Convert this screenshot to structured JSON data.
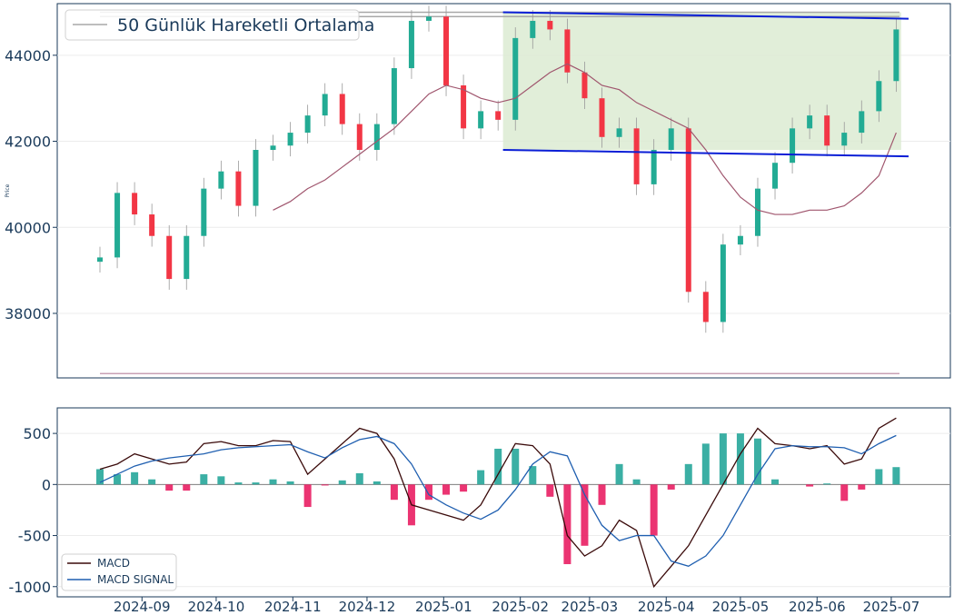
{
  "chart_data": [
    {
      "type": "candlestick",
      "ylabel": "Price",
      "ylim": [
        36500,
        45200
      ],
      "yticks": [
        38000,
        40000,
        42000,
        44000
      ],
      "legend": {
        "position": "top-left",
        "entries": [
          "50 Günlük Hareketli Ortalama"
        ]
      },
      "grid": true,
      "x_dates": [
        "2024-08-15",
        "2024-08-22",
        "2024-08-29",
        "2024-09-05",
        "2024-09-12",
        "2024-09-19",
        "2024-09-26",
        "2024-10-03",
        "2024-10-10",
        "2024-10-17",
        "2024-10-24",
        "2024-10-31",
        "2024-11-07",
        "2024-11-14",
        "2024-11-21",
        "2024-11-28",
        "2024-12-05",
        "2024-12-12",
        "2024-12-19",
        "2024-12-26",
        "2025-01-02",
        "2025-01-09",
        "2025-01-16",
        "2025-01-23",
        "2025-01-30",
        "2025-02-06",
        "2025-02-13",
        "2025-02-20",
        "2025-02-27",
        "2025-03-06",
        "2025-03-13",
        "2025-03-20",
        "2025-03-27",
        "2025-04-03",
        "2025-04-10",
        "2025-04-17",
        "2025-04-24",
        "2025-05-01",
        "2025-05-08",
        "2025-05-15",
        "2025-05-22",
        "2025-05-29",
        "2025-06-05",
        "2025-06-12",
        "2025-06-19",
        "2025-06-26",
        "2025-07-03"
      ],
      "close": [
        39300,
        40800,
        40300,
        39800,
        38800,
        39800,
        40900,
        41300,
        40500,
        41800,
        41900,
        42200,
        42600,
        43100,
        42400,
        41800,
        42400,
        43700,
        44800,
        44900,
        43300,
        42300,
        42700,
        42500,
        44400,
        44800,
        44600,
        43600,
        43000,
        42100,
        42300,
        41000,
        41800,
        42300,
        38500,
        37800,
        39600,
        39800,
        40900,
        41500,
        42300,
        42600,
        41900,
        42200,
        42700,
        43400,
        44600
      ],
      "ma50": [
        null,
        null,
        null,
        null,
        null,
        null,
        null,
        null,
        null,
        null,
        40400,
        40600,
        40900,
        41100,
        41400,
        41700,
        42000,
        42300,
        42700,
        43100,
        43300,
        43200,
        43000,
        42900,
        43000,
        43300,
        43600,
        43800,
        43600,
        43300,
        43200,
        42900,
        42700,
        42500,
        42300,
        41800,
        41200,
        40700,
        40400,
        40300,
        40300,
        40400,
        40400,
        40500,
        40800,
        41200,
        42200
      ],
      "channel": {
        "upper": [
          45000,
          44850
        ],
        "lower": [
          41800,
          41650
        ],
        "dates": [
          "2025-01-25",
          "2025-07-08"
        ]
      },
      "hlines": [
        45000,
        44900,
        36600
      ],
      "shaded_box": {
        "x": [
          "2025-01-25",
          "2025-07-05"
        ],
        "y": [
          41800,
          45000
        ]
      }
    },
    {
      "type": "line+bar",
      "ylim": [
        -1100,
        750
      ],
      "yticks": [
        -1000,
        -500,
        0,
        500
      ],
      "xticks": [
        "2024-09",
        "2024-10",
        "2024-11",
        "2024-12",
        "2025-01",
        "2025-02",
        "2025-03",
        "2025-04",
        "2025-05",
        "2025-06",
        "2025-07"
      ],
      "series": [
        {
          "name": "MACD",
          "values": [
            150,
            200,
            300,
            250,
            200,
            220,
            400,
            420,
            380,
            380,
            430,
            420,
            100,
            250,
            400,
            550,
            500,
            250,
            -200,
            -250,
            -300,
            -350,
            -200,
            100,
            400,
            380,
            200,
            -500,
            -700,
            -600,
            -350,
            -450,
            -1000,
            -800,
            -600,
            -300,
            0,
            300,
            550,
            400,
            380,
            350,
            380,
            200,
            250,
            550,
            650
          ]
        },
        {
          "name": "MACD SIGNAL",
          "values": [
            20,
            100,
            180,
            230,
            260,
            280,
            300,
            340,
            360,
            370,
            380,
            390,
            320,
            260,
            360,
            440,
            470,
            400,
            200,
            -100,
            -200,
            -280,
            -340,
            -250,
            -50,
            200,
            320,
            280,
            -100,
            -400,
            -550,
            -500,
            -500,
            -750,
            -800,
            -700,
            -500,
            -200,
            100,
            350,
            380,
            370,
            370,
            360,
            300,
            400,
            480
          ]
        }
      ],
      "histogram": [
        150,
        100,
        120,
        50,
        -60,
        -60,
        100,
        80,
        20,
        20,
        50,
        30,
        -220,
        -10,
        40,
        110,
        30,
        -150,
        -400,
        -150,
        -100,
        -70,
        140,
        350,
        350,
        180,
        -120,
        -780,
        -600,
        -200,
        200,
        50,
        -500,
        -50,
        200,
        400,
        500,
        500,
        450,
        50,
        0,
        -20,
        10,
        -160,
        -50,
        150,
        170
      ],
      "legend": {
        "position": "bottom-left",
        "entries": [
          "MACD",
          "MACD SIGNAL"
        ]
      },
      "grid": true
    }
  ],
  "colors": {
    "up": "#22ab94",
    "down": "#f23645",
    "ma": "#a0566e",
    "channel": "#0a1ed6",
    "box": "#dcebd2",
    "macd": "#3a0a0a",
    "signal": "#1f5fb0",
    "hist_up": "#26a69a",
    "hist_down": "#e91e63",
    "axis": "#1a3a5a",
    "hline": "#a8a8a8"
  }
}
